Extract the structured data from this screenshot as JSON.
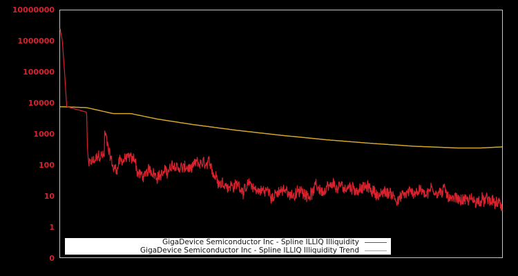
{
  "chart_data": {
    "type": "line",
    "title": "",
    "xlabel": "",
    "ylabel": "",
    "yscale": "log",
    "ylim": [
      0.1,
      10000000
    ],
    "y_ticks": [
      "10000000",
      "1000000",
      "100000",
      "10000",
      "1000",
      "100",
      "10",
      "1",
      "0"
    ],
    "grid": false,
    "legend_position": "bottom-left inside",
    "colors": {
      "background": "#000000",
      "frame": "#c8c8c8",
      "tick_label": "#d8222d",
      "illiquidity": "#d8222d",
      "trend": "#d4a62a"
    },
    "series": [
      {
        "name": "GigaDevice Semiconductor Inc - Spline ILLIQ Illiquidity",
        "color": "#d8222d",
        "approx_points": [
          [
            0.0,
            2500000
          ],
          [
            0.005,
            1000000
          ],
          [
            0.01,
            100000
          ],
          [
            0.015,
            7500
          ],
          [
            0.06,
            5000
          ],
          [
            0.062,
            300
          ],
          [
            0.065,
            100
          ],
          [
            0.08,
            120
          ],
          [
            0.1,
            180
          ],
          [
            0.1,
            180
          ],
          [
            0.1,
            1000
          ],
          [
            0.115,
            200
          ],
          [
            0.12,
            80
          ],
          [
            0.13,
            90
          ],
          [
            0.135,
            190
          ],
          [
            0.17,
            150
          ],
          [
            0.175,
            60
          ],
          [
            0.19,
            40
          ],
          [
            0.22,
            60
          ],
          [
            0.25,
            70
          ],
          [
            0.28,
            75
          ],
          [
            0.3,
            60
          ],
          [
            0.32,
            80
          ],
          [
            0.35,
            40
          ],
          [
            0.38,
            30
          ],
          [
            0.42,
            20
          ],
          [
            0.45,
            15
          ],
          [
            0.5,
            12
          ],
          [
            0.55,
            12
          ],
          [
            0.58,
            20
          ],
          [
            0.6,
            12
          ],
          [
            0.63,
            12
          ],
          [
            0.68,
            20
          ],
          [
            0.72,
            12
          ],
          [
            0.76,
            10
          ],
          [
            0.8,
            14
          ],
          [
            0.84,
            20
          ],
          [
            0.88,
            12
          ],
          [
            0.92,
            9
          ],
          [
            0.96,
            6
          ],
          [
            1.0,
            4
          ]
        ]
      },
      {
        "name": "GigaDevice Semiconductor Inc - Spline ILLIQ Illiquidity Trend",
        "color": "#d4a62a",
        "approx_points": [
          [
            0.0,
            7500
          ],
          [
            0.06,
            7000
          ],
          [
            0.12,
            4500
          ],
          [
            0.16,
            4500
          ],
          [
            0.22,
            3000
          ],
          [
            0.3,
            2000
          ],
          [
            0.4,
            1300
          ],
          [
            0.5,
            900
          ],
          [
            0.6,
            650
          ],
          [
            0.7,
            500
          ],
          [
            0.8,
            400
          ],
          [
            0.9,
            350
          ],
          [
            0.95,
            350
          ],
          [
            1.0,
            380
          ]
        ]
      }
    ]
  },
  "legend": {
    "items": [
      {
        "label": "GigaDevice Semiconductor Inc - Spline ILLIQ Illiquidity",
        "color": "#d8222d"
      },
      {
        "label": "GigaDevice Semiconductor Inc - Spline ILLIQ Illiquidity Trend",
        "color": "#d4a62a"
      }
    ]
  }
}
